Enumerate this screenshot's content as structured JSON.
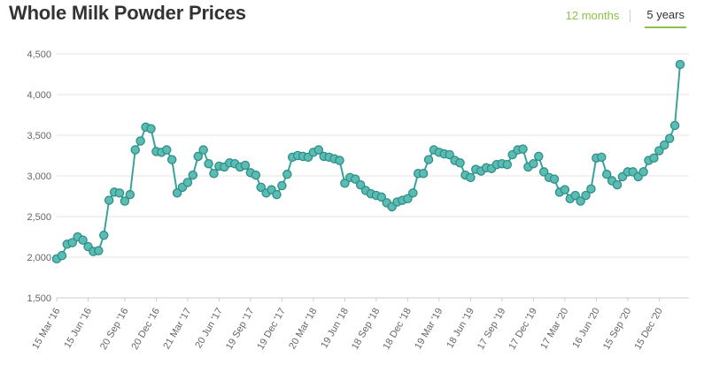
{
  "header": {
    "title": "Whole Milk Powder Prices",
    "tabs": [
      {
        "label": "12 months",
        "active": false
      },
      {
        "label": "5 years",
        "active": true
      }
    ]
  },
  "colors": {
    "line": "#3aa39c",
    "marker_fill": "#5bbcb4",
    "marker_stroke": "#2f8f88",
    "grid": "#e6e6e6",
    "axis_text": "#666666",
    "accent": "#8cc04b"
  },
  "chart_data": {
    "type": "line",
    "title": "Whole Milk Powder Prices",
    "xlabel": "",
    "ylabel": "",
    "ylim": [
      1500,
      4500
    ],
    "yticks": [
      1500,
      2000,
      2500,
      3000,
      3500,
      4000,
      4500
    ],
    "ytick_labels": [
      "1,500",
      "2,000",
      "2,500",
      "3,000",
      "3,500",
      "4,000",
      "4,500"
    ],
    "grid": true,
    "legend": "none",
    "xtick_labels": [
      {
        "index": 0,
        "label": "15 Mar '16"
      },
      {
        "index": 6,
        "label": "15 Jun '16"
      },
      {
        "index": 13,
        "label": "20 Sep '16"
      },
      {
        "index": 19,
        "label": "20 Dec '16"
      },
      {
        "index": 25,
        "label": "21 Mar '17"
      },
      {
        "index": 31,
        "label": "20 Jun '17"
      },
      {
        "index": 37,
        "label": "19 Sep '17"
      },
      {
        "index": 43,
        "label": "19 Dec '17"
      },
      {
        "index": 49,
        "label": "20 Mar '18"
      },
      {
        "index": 55,
        "label": "19 Jun '18"
      },
      {
        "index": 61,
        "label": "18 Sep '18"
      },
      {
        "index": 67,
        "label": "18 Dec '18"
      },
      {
        "index": 73,
        "label": "19 Mar '19"
      },
      {
        "index": 79,
        "label": "18 Jun '19"
      },
      {
        "index": 85,
        "label": "17 Sep '19"
      },
      {
        "index": 91,
        "label": "17 Dec '19"
      },
      {
        "index": 97,
        "label": "17 Mar '20"
      },
      {
        "index": 103,
        "label": "16 Jun '20"
      },
      {
        "index": 109,
        "label": "15 Sep '20"
      },
      {
        "index": 115,
        "label": "15 Dec '20"
      }
    ],
    "series": [
      {
        "values": [
          1980,
          2020,
          2160,
          2180,
          2250,
          2210,
          2130,
          2070,
          2080,
          2270,
          2700,
          2800,
          2790,
          2690,
          2770,
          3320,
          3430,
          3600,
          3580,
          3300,
          3290,
          3320,
          3200,
          2790,
          2860,
          2920,
          3010,
          3240,
          3320,
          3150,
          3030,
          3120,
          3110,
          3160,
          3150,
          3110,
          3130,
          3040,
          3010,
          2860,
          2790,
          2830,
          2770,
          2880,
          3020,
          3230,
          3250,
          3240,
          3230,
          3290,
          3320,
          3240,
          3230,
          3210,
          3190,
          2910,
          2980,
          2960,
          2890,
          2820,
          2780,
          2760,
          2740,
          2670,
          2620,
          2680,
          2700,
          2720,
          2790,
          3030,
          3030,
          3200,
          3320,
          3290,
          3270,
          3260,
          3190,
          3160,
          3010,
          2980,
          3080,
          3060,
          3100,
          3090,
          3140,
          3150,
          3140,
          3260,
          3320,
          3330,
          3110,
          3150,
          3240,
          3050,
          2980,
          2960,
          2800,
          2830,
          2720,
          2760,
          2690,
          2760,
          2840,
          3220,
          3230,
          3020,
          2940,
          2890,
          2990,
          3050,
          3050,
          2990,
          3050,
          3190,
          3220,
          3310,
          3380,
          3460,
          3620,
          4370
        ]
      }
    ]
  }
}
